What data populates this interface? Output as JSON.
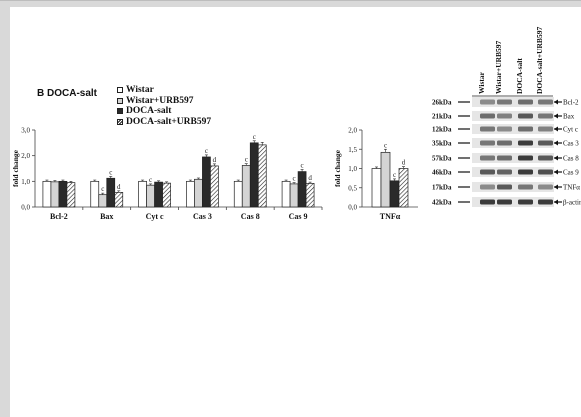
{
  "panel_label": "B DOCA-salt",
  "legend": [
    {
      "label": "Wistar",
      "fill": "#ffffff",
      "pattern": "solid"
    },
    {
      "label": "Wistar+URB597",
      "fill": "#d4d4d4",
      "pattern": "solid"
    },
    {
      "label": "DOCA-salt",
      "fill": "#2a2a2a",
      "pattern": "solid"
    },
    {
      "label": "DOCA-salt+URB597",
      "fill": "#ffffff",
      "pattern": "hatch"
    }
  ],
  "chart_data": [
    {
      "type": "bar",
      "ylabel": "fold change",
      "ylim": [
        0,
        3.0
      ],
      "yticks": [
        "0,0",
        "1,0",
        "2,0",
        "3,0"
      ],
      "categories": [
        "Bcl-2",
        "Bax",
        "Cyt c",
        "Cas 3",
        "Cas 8",
        "Cas 9"
      ],
      "series": [
        {
          "name": "Wistar",
          "values": [
            1.0,
            1.0,
            1.0,
            1.0,
            1.0,
            1.0
          ],
          "errors": [
            0.05,
            0.05,
            0.05,
            0.05,
            0.05,
            0.05
          ]
        },
        {
          "name": "Wistar+URB597",
          "values": [
            0.98,
            0.48,
            0.85,
            1.08,
            1.62,
            0.9
          ],
          "errors": [
            0.05,
            0.06,
            0.05,
            0.05,
            0.07,
            0.05
          ]
        },
        {
          "name": "DOCA-salt",
          "values": [
            1.0,
            1.12,
            0.97,
            1.95,
            2.5,
            1.38
          ],
          "errors": [
            0.05,
            0.07,
            0.05,
            0.08,
            0.08,
            0.08
          ]
        },
        {
          "name": "DOCA-salt+URB597",
          "values": [
            0.95,
            0.57,
            0.93,
            1.6,
            2.42,
            0.92
          ],
          "errors": [
            0.05,
            0.06,
            0.05,
            0.08,
            0.1,
            0.05
          ]
        }
      ],
      "annotations": [
        {
          "category": "Bax",
          "series": 1,
          "text": "c"
        },
        {
          "category": "Bax",
          "series": 2,
          "text": "c"
        },
        {
          "category": "Bax",
          "series": 3,
          "text": "d"
        },
        {
          "category": "Cyt c",
          "series": 1,
          "text": "c"
        },
        {
          "category": "Cas 3",
          "series": 2,
          "text": "c"
        },
        {
          "category": "Cas 3",
          "series": 3,
          "text": "d"
        },
        {
          "category": "Cas 8",
          "series": 1,
          "text": "c"
        },
        {
          "category": "Cas 8",
          "series": 2,
          "text": "c"
        },
        {
          "category": "Cas 9",
          "series": 1,
          "text": "c"
        },
        {
          "category": "Cas 9",
          "series": 2,
          "text": "c"
        },
        {
          "category": "Cas 9",
          "series": 3,
          "text": "d"
        }
      ]
    },
    {
      "type": "bar",
      "ylabel": "fold change",
      "ylim": [
        0,
        2.0
      ],
      "yticks": [
        "0,0",
        "0,5",
        "1,0",
        "1,5",
        "2,0"
      ],
      "categories": [
        "TNFα"
      ],
      "series": [
        {
          "name": "Wistar",
          "values": [
            1.0
          ],
          "errors": [
            0.04
          ]
        },
        {
          "name": "Wistar+URB597",
          "values": [
            1.42
          ],
          "errors": [
            0.08
          ]
        },
        {
          "name": "DOCA-salt",
          "values": [
            0.68
          ],
          "errors": [
            0.05
          ]
        },
        {
          "name": "DOCA-salt+URB597",
          "values": [
            1.0
          ],
          "errors": [
            0.05
          ]
        }
      ],
      "annotations": [
        {
          "category": "TNFα",
          "series": 1,
          "text": "c"
        },
        {
          "category": "TNFα",
          "series": 2,
          "text": "c"
        },
        {
          "category": "TNFα",
          "series": 3,
          "text": "d"
        }
      ]
    }
  ],
  "blot": {
    "lanes": [
      "Wistar",
      "Wistar+URB597",
      "DOCA-salt",
      "DOCA-salt+URB597"
    ],
    "markers": [
      "26kDa",
      "21kDa",
      "12kDa",
      "35kDa",
      "57kDa",
      "46kDa",
      "17kDa",
      "42kDa"
    ],
    "proteins": [
      "Bcl-2",
      "Bax",
      "Cyt c",
      "Cas 3",
      "Cas 8",
      "Cas 9",
      "TNFα",
      "β-actin"
    ]
  }
}
